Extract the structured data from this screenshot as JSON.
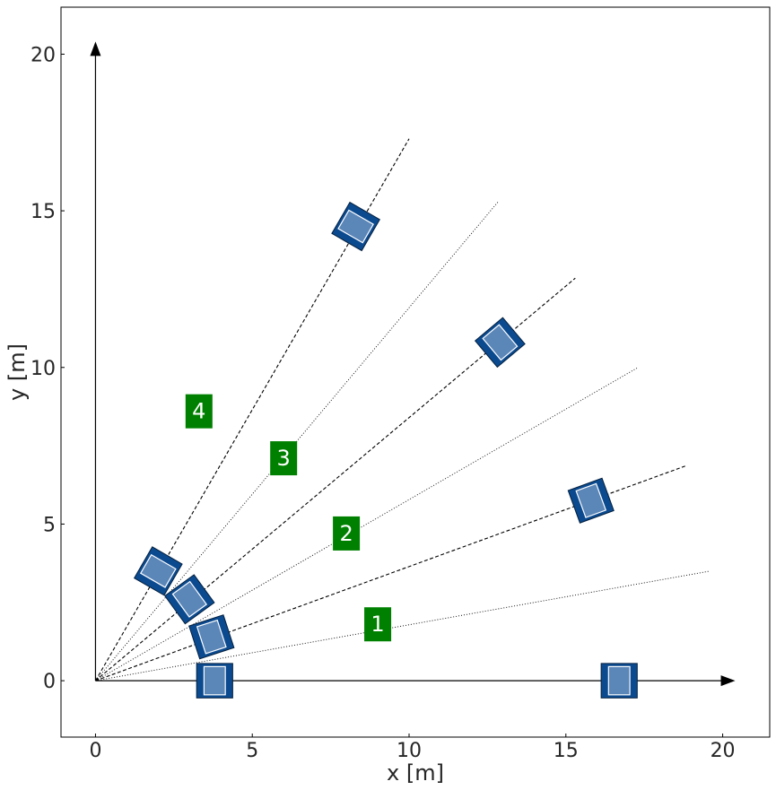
{
  "chart_data": {
    "type": "scatter",
    "title": "",
    "xlabel": "x [m]",
    "ylabel": "y [m]",
    "xlim": [
      -1.1,
      21.5
    ],
    "ylim": [
      -1.8,
      21.5
    ],
    "xticks": [
      "0",
      "5",
      "10",
      "20"
    ],
    "xtick_values": [
      0,
      5,
      10,
      20
    ],
    "xtick_extra": {
      "label": "15",
      "value": 15
    },
    "yticks": [
      "0",
      "5",
      "10",
      "15",
      "20"
    ],
    "ytick_values": [
      0,
      5,
      10,
      15,
      20
    ],
    "grid": false,
    "colors": {
      "body": "#0b4a8f",
      "inner": "#5b86b8",
      "region": "#008000",
      "line": "#000000"
    },
    "coordinate_axes": {
      "x_end": 20.4,
      "y_end": 20.4
    },
    "rays": [
      {
        "style": "dotted",
        "end": [
          19.6,
          3.5
        ]
      },
      {
        "style": "dashed",
        "end": [
          18.8,
          6.85
        ]
      },
      {
        "style": "dotted",
        "end": [
          17.3,
          10.0
        ]
      },
      {
        "style": "dashed",
        "end": [
          15.3,
          12.85
        ]
      },
      {
        "style": "dotted",
        "end": [
          12.85,
          15.3
        ]
      },
      {
        "style": "dashed",
        "end": [
          10.0,
          17.3
        ]
      }
    ],
    "regions": [
      {
        "label": "1",
        "x": 9.0,
        "y": 1.8
      },
      {
        "label": "2",
        "x": 8.0,
        "y": 4.7
      },
      {
        "label": "3",
        "x": 6.0,
        "y": 7.1
      },
      {
        "label": "4",
        "x": 3.3,
        "y": 8.6
      }
    ],
    "vehicles": [
      {
        "x": 3.8,
        "y": 0.0,
        "angle": 0
      },
      {
        "x": 3.7,
        "y": 1.4,
        "angle": 18
      },
      {
        "x": 3.0,
        "y": 2.6,
        "angle": 36
      },
      {
        "x": 2.0,
        "y": 3.5,
        "angle": 60
      },
      {
        "x": 16.7,
        "y": 0.0,
        "angle": 0
      },
      {
        "x": 15.8,
        "y": 5.75,
        "angle": 20
      },
      {
        "x": 12.9,
        "y": 10.8,
        "angle": 40
      },
      {
        "x": 8.3,
        "y": 14.5,
        "angle": 60
      }
    ]
  }
}
